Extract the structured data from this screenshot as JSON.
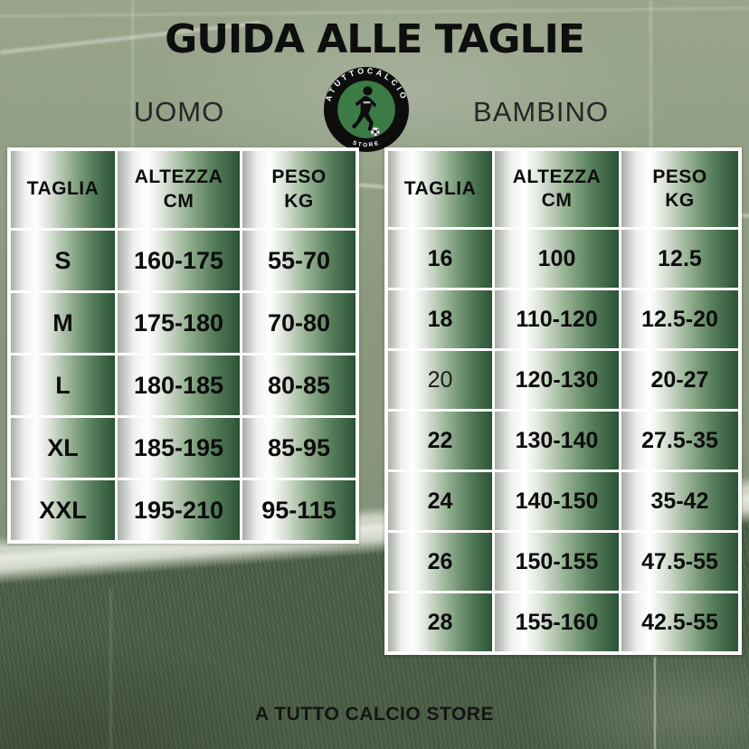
{
  "title": "GUIDA ALLE TAGLIE",
  "footer": "A TUTTO CALCIO STORE",
  "logo": {
    "arc_text": "ATUTTOCALCIO",
    "bottom_text": "STORE",
    "ring_color": "#0d0d0d",
    "inner_color": "#3c7a46",
    "text_color": "#ffffff"
  },
  "colors": {
    "cell_gradient_left_gray": "#a9aea8",
    "cell_gradient_white": "#ffffff",
    "cell_gradient_dark_green": "#2b5336",
    "table_border": "#ffffff",
    "field_light_green": "#8f9c82",
    "field_dark_green": "#4f6449",
    "text": "#0d0d0d"
  },
  "sections": {
    "uomo": {
      "label": "UOMO",
      "table": {
        "headers": [
          {
            "line1": "TAGLIA",
            "line2": ""
          },
          {
            "line1": "ALTEZZA",
            "line2": "CM"
          },
          {
            "line1": "PESO",
            "line2": "KG"
          }
        ],
        "rows": [
          {
            "cells": [
              "S",
              "160-175",
              "55-70"
            ]
          },
          {
            "cells": [
              "M",
              "175-180",
              "70-80"
            ]
          },
          {
            "cells": [
              "L",
              "180-185",
              "80-85"
            ]
          },
          {
            "cells": [
              "XL",
              "185-195",
              "85-95"
            ]
          },
          {
            "cells": [
              "XXL",
              "195-210",
              "95-115"
            ]
          }
        ]
      }
    },
    "bambino": {
      "label": "BAMBINO",
      "table": {
        "headers": [
          {
            "line1": "TAGLIA",
            "line2": ""
          },
          {
            "line1": "ALTEZZA",
            "line2": "CM"
          },
          {
            "line1": "PESO",
            "line2": "KG"
          }
        ],
        "rows": [
          {
            "cells": [
              "16",
              "100",
              "12.5"
            ]
          },
          {
            "cells": [
              "18",
              "110-120",
              "12.5-20"
            ]
          },
          {
            "cells": [
              "20",
              "120-130",
              "20-27"
            ],
            "light_columns": [
              0
            ]
          },
          {
            "cells": [
              "22",
              "130-140",
              "27.5-35"
            ]
          },
          {
            "cells": [
              "24",
              "140-150",
              "35-42"
            ]
          },
          {
            "cells": [
              "26",
              "150-155",
              "47.5-55"
            ]
          },
          {
            "cells": [
              "28",
              "155-160",
              "42.5-55"
            ]
          }
        ]
      }
    }
  }
}
